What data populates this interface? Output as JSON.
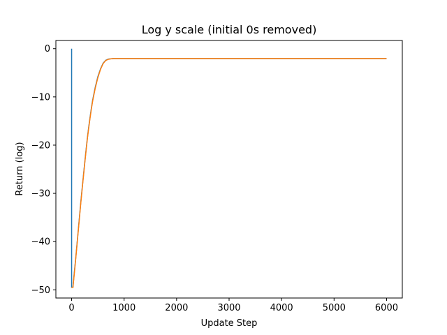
{
  "chart_data": {
    "type": "line",
    "title": "Log y scale (initial 0s removed)",
    "xlabel": "Update Step",
    "ylabel": "Return (log)",
    "xlim": [
      -300,
      6300
    ],
    "ylim": [
      -51.7,
      1.7
    ],
    "x_ticks": [
      0,
      1000,
      2000,
      3000,
      4000,
      5000,
      6000
    ],
    "x_tick_labels": [
      "0",
      "1000",
      "2000",
      "3000",
      "4000",
      "5000",
      "6000"
    ],
    "y_ticks": [
      0,
      -10,
      -20,
      -30,
      -40,
      -50
    ],
    "y_tick_labels": [
      "0",
      "−10",
      "−20",
      "−30",
      "−40",
      "−50"
    ],
    "grid": false,
    "legend": "none",
    "series": [
      {
        "color": "#1f77b4",
        "x": [
          0,
          0,
          25,
          50,
          75,
          100,
          125,
          150,
          175,
          200,
          225,
          250,
          275,
          300,
          325,
          350,
          375,
          400,
          450,
          500,
          550,
          600,
          650,
          700,
          750,
          800,
          1000,
          2000,
          3000,
          4000,
          5000,
          6000
        ],
        "y": [
          0,
          -49.5,
          -49.5,
          -46.5,
          -43.8,
          -40.8,
          -37.8,
          -34.8,
          -31.8,
          -29.0,
          -26.3,
          -23.6,
          -21.0,
          -18.5,
          -16.3,
          -14.3,
          -12.4,
          -10.7,
          -8.0,
          -5.8,
          -4.2,
          -3.0,
          -2.4,
          -2.15,
          -2.1,
          -2.05,
          -2.05,
          -2.05,
          -2.05,
          -2.05,
          -2.05,
          -2.05
        ]
      },
      {
        "color": "#ff7f0e",
        "x": [
          0,
          25,
          50,
          75,
          100,
          125,
          150,
          175,
          200,
          225,
          250,
          275,
          300,
          325,
          350,
          375,
          400,
          450,
          500,
          550,
          600,
          650,
          700,
          750,
          800,
          1000,
          2000,
          3000,
          4000,
          5000,
          6000
        ],
        "y": [
          -49.5,
          -49.5,
          -46.8,
          -44.0,
          -41.0,
          -38.0,
          -35.0,
          -32.0,
          -29.2,
          -26.5,
          -23.8,
          -21.2,
          -18.7,
          -16.5,
          -14.5,
          -12.6,
          -10.9,
          -8.2,
          -6.0,
          -4.3,
          -3.1,
          -2.45,
          -2.2,
          -2.1,
          -2.05,
          -2.05,
          -2.05,
          -2.05,
          -2.05,
          -2.05,
          -2.05
        ]
      }
    ]
  }
}
